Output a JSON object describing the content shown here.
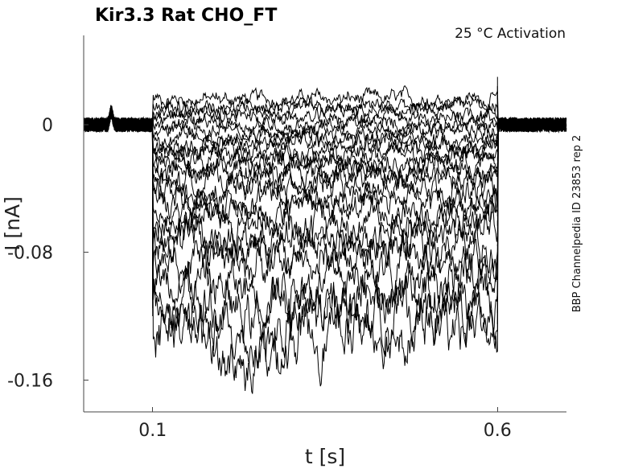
{
  "chart_data": {
    "type": "line",
    "title": "Kir3.3  Rat  CHO_FT",
    "annotation": "25 °C  Activation",
    "side_label": "BBP Channelpedia ID 23853 rep 2",
    "xlabel": "t [s]",
    "ylabel": "I [nA]",
    "xlim": [
      0.0,
      0.7
    ],
    "ylim": [
      -0.18,
      0.056
    ],
    "xticks": [
      {
        "value": 0.1,
        "label": "0.1"
      },
      {
        "value": 0.6,
        "label": "0.6"
      }
    ],
    "yticks": [
      {
        "value": 0,
        "label": "0"
      },
      {
        "value": -0.08,
        "label": "-0.08"
      },
      {
        "value": -0.16,
        "label": "-0.16"
      }
    ],
    "grid": false,
    "legend": "none",
    "line_color": "#000000",
    "step_start_s": 0.1,
    "step_end_s": 0.6,
    "series_steady_current_nA": [
      0.016,
      0.012,
      0.008,
      0.004,
      0.0,
      -0.004,
      -0.008,
      -0.012,
      -0.016,
      -0.02,
      -0.024,
      -0.029,
      -0.034,
      -0.04,
      -0.046,
      -0.053,
      -0.06,
      -0.068,
      -0.076,
      -0.086,
      -0.097,
      -0.108,
      -0.118,
      -0.125
    ]
  }
}
